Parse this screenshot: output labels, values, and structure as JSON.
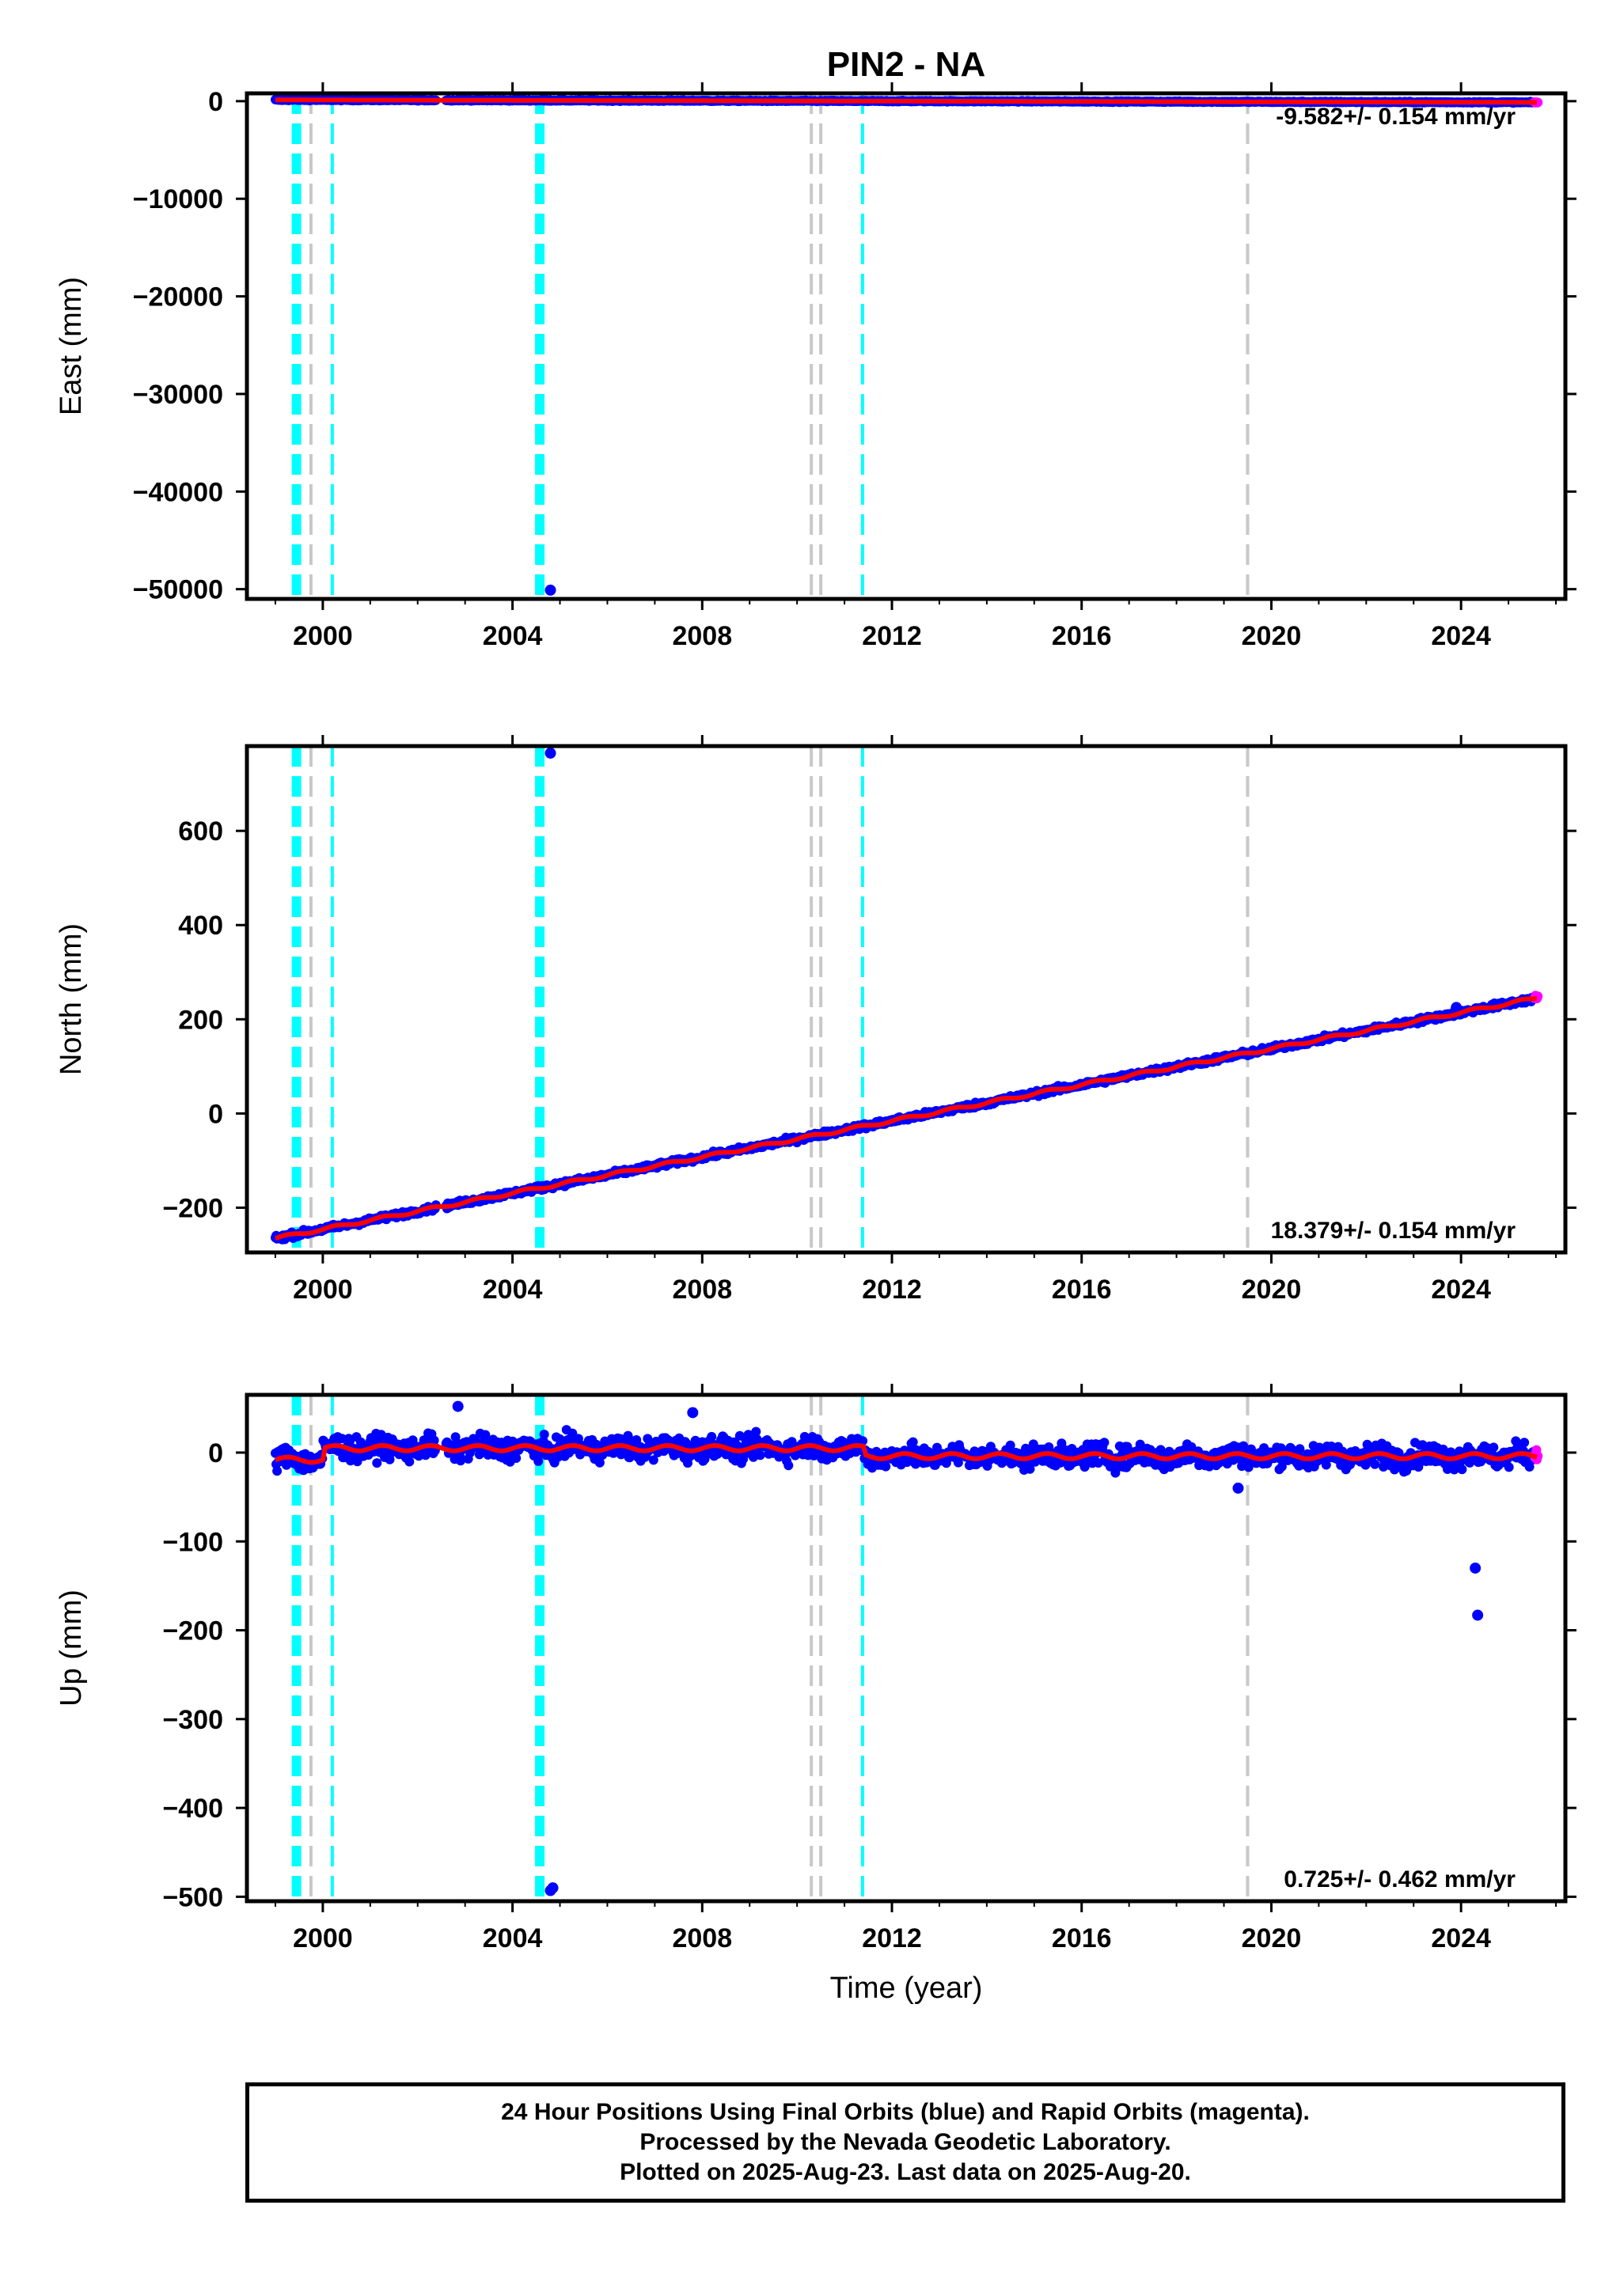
{
  "chart_data": {
    "type": "scatter",
    "title": "PIN2 - NA",
    "xlabel": "Time (year)",
    "x_tick_labels": [
      "2000",
      "2004",
      "2008",
      "2012",
      "2016",
      "2020",
      "2024"
    ],
    "xlim": [
      1998.4,
      2026.2
    ],
    "series_legend": {
      "final_orbits_color": "#0000ff",
      "rapid_orbits_color": "#ff00ff",
      "model_color": "#ff0000"
    },
    "event_lines": {
      "cyan": [
        1999.42,
        1999.47,
        2000.2,
        2004.55,
        2004.6,
        2011.38
      ],
      "gray": [
        1999.75,
        2010.3,
        2010.5,
        2019.5
      ]
    },
    "panels": [
      {
        "id": "east",
        "ylabel": "East (mm)",
        "ylim": [
          -51000,
          800
        ],
        "y_ticks": [
          0,
          -10000,
          -20000,
          -30000,
          -40000,
          -50000
        ],
        "y_tick_labels": [
          "0",
          "−10000",
          "−20000",
          "−30000",
          "−40000",
          "−50000"
        ],
        "rate_text": "-9.582+/- 0.154 mm/yr",
        "trend": {
          "start": [
            1999.0,
            130
          ],
          "end": [
            2025.6,
            -126
          ]
        },
        "outliers": [
          [
            2004.8,
            -50100
          ]
        ]
      },
      {
        "id": "north",
        "ylabel": "North (mm)",
        "ylim": [
          -295,
          780
        ],
        "y_ticks": [
          600,
          400,
          200,
          0,
          -200
        ],
        "y_tick_labels": [
          "600",
          "400",
          "200",
          "0",
          "−200"
        ],
        "rate_text": "18.379+/- 0.154 mm/yr",
        "trend": {
          "start": [
            1999.0,
            -265
          ],
          "end": [
            2025.6,
            245
          ]
        },
        "outliers": [
          [
            2004.8,
            765
          ],
          [
            2023.9,
            225
          ]
        ]
      },
      {
        "id": "up",
        "ylabel": "Up (mm)",
        "ylim": [
          -505,
          65
        ],
        "y_ticks": [
          0,
          -100,
          -200,
          -300,
          -400,
          -500
        ],
        "y_tick_labels": [
          "0",
          "−100",
          "−200",
          "−300",
          "−400",
          "−500"
        ],
        "rate_text": "0.725+/- 0.462 mm/yr",
        "trend": {
          "start": [
            1999.0,
            -8
          ],
          "end": [
            2025.6,
            -2
          ]
        },
        "outliers": [
          [
            2004.85,
            -490
          ],
          [
            2004.8,
            -493
          ],
          [
            2024.3,
            -130
          ],
          [
            2024.35,
            -183
          ],
          [
            2002.85,
            52
          ],
          [
            2007.8,
            45
          ],
          [
            2019.3,
            -40
          ]
        ]
      }
    ]
  },
  "footer": {
    "line1": "24 Hour Positions Using Final Orbits (blue) and Rapid Orbits (magenta).",
    "line2": "Processed by the Nevada Geodetic Laboratory.",
    "line3": "Plotted on 2025-Aug-23. Last data on 2025-Aug-20."
  }
}
